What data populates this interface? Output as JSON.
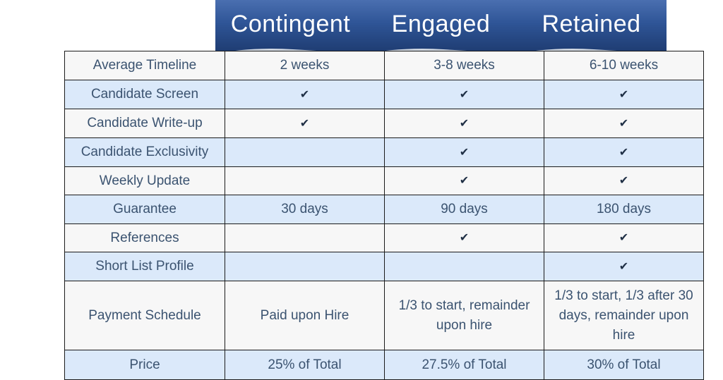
{
  "columns": [
    "Contingent",
    "Engaged",
    "Retained"
  ],
  "rows": [
    {
      "label": "Average Timeline",
      "values": [
        "2 weeks",
        "3-8 weeks",
        "6-10 weeks"
      ]
    },
    {
      "label": "Candidate Screen",
      "values": [
        "✔",
        "✔",
        "✔"
      ]
    },
    {
      "label": "Candidate Write-up",
      "values": [
        "✔",
        "✔",
        "✔"
      ]
    },
    {
      "label": "Candidate Exclusivity",
      "values": [
        "",
        "✔",
        "✔"
      ]
    },
    {
      "label": "Weekly Update",
      "values": [
        "",
        "✔",
        "✔"
      ]
    },
    {
      "label": "Guarantee",
      "values": [
        "30 days",
        "90 days",
        "180 days"
      ]
    },
    {
      "label": "References",
      "values": [
        "",
        "✔",
        "✔"
      ]
    },
    {
      "label": "Short List Profile",
      "values": [
        "",
        "",
        "✔"
      ]
    },
    {
      "label": "Payment Schedule",
      "values": [
        "Paid upon Hire",
        "1/3 to start, remainder upon hire",
        "1/3 to start, 1/3 after 30 days, remainder upon hire"
      ]
    },
    {
      "label": "Price",
      "values": [
        "25% of Total",
        "27.5% of Total",
        "30% of Total"
      ]
    }
  ],
  "colors": {
    "header_top": "#4a6fb0",
    "header_bottom": "#1f3d73",
    "row_light": "#f7f7f7",
    "row_blue": "#dbe9fa",
    "text": "#3b5370",
    "border": "#1b1b1b"
  },
  "icons": {
    "check": "check-mark-icon"
  }
}
